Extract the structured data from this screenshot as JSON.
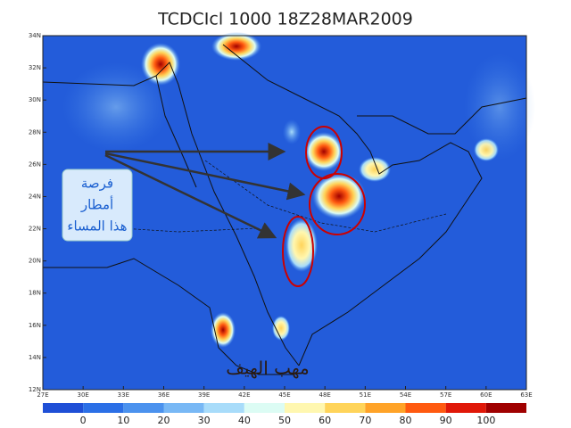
{
  "title": "TCDCIcl 1000 18Z28MAR2009",
  "lat_labels": [
    "34N",
    "32N",
    "30N",
    "28N",
    "26N",
    "24N",
    "22N",
    "20N",
    "18N",
    "16N",
    "14N",
    "12N"
  ],
  "lon_labels": [
    "27E",
    "30E",
    "33E",
    "36E",
    "39E",
    "42E",
    "45E",
    "48E",
    "51E",
    "54E",
    "57E",
    "60E",
    "63E"
  ],
  "colorbar": {
    "labels": [
      0,
      10,
      20,
      30,
      40,
      50,
      60,
      70,
      80,
      90,
      100
    ],
    "colors": [
      "#1f4fd6",
      "#2b6fe6",
      "#4b92ee",
      "#78b8f5",
      "#a8dcfa",
      "#dcfcf4",
      "#fff7b0",
      "#ffd45a",
      "#ffa328",
      "#ff5a10",
      "#e01808",
      "#a00000"
    ]
  },
  "annotation": {
    "lines": [
      "فرصة",
      "أمطار",
      "هذا المساء"
    ]
  },
  "watermark": "مهب الهيف"
}
